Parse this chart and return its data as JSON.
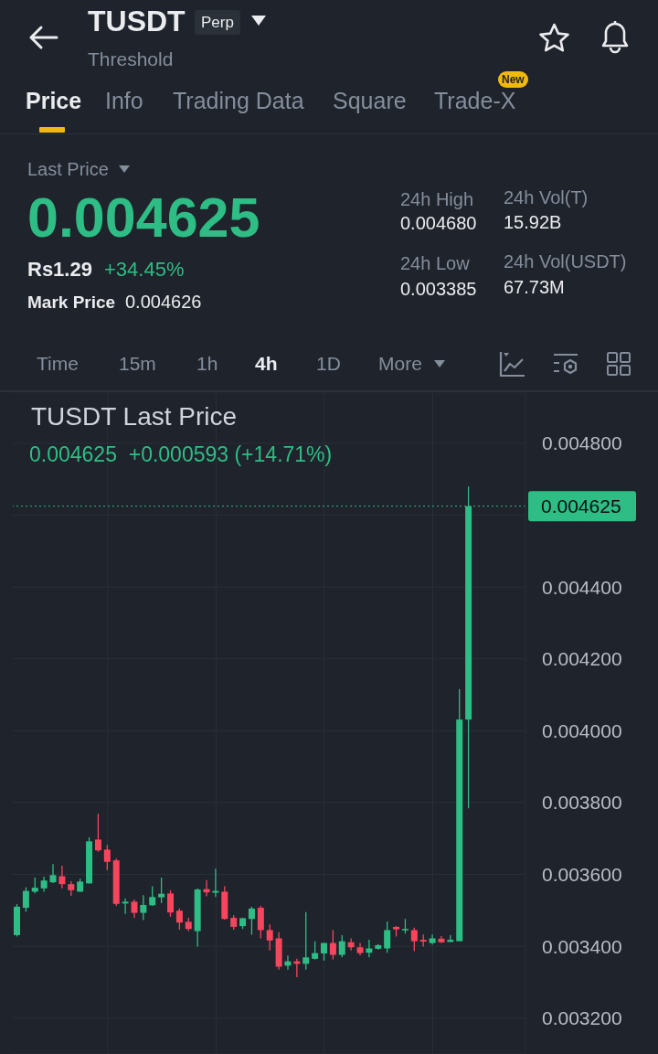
{
  "chart_data": {
    "type": "candlestick",
    "title": "TUSDT Last Price",
    "subtitle": "0.004625  +0.000593 (+14.71%)",
    "annotations": [
      "TUSDT",
      "Perp",
      "Threshold",
      "Price",
      "Info",
      "Trading Data",
      "Square",
      "Trade-X",
      "New",
      "Last Price",
      "0.004625",
      "24h High",
      "0.004680",
      "24h Vol(T)",
      "15.92B",
      "Rs1.29",
      "+34.45%",
      "24h Low",
      "0.003385",
      "24h Vol(USDT)",
      "67.73M",
      "Mark Price",
      "0.004626",
      "Time",
      "15m",
      "1h",
      "4h",
      "1D",
      "More"
    ],
    "categories": [
      null,
      null,
      null,
      null,
      null,
      null,
      null,
      null,
      null,
      null,
      null,
      null,
      null,
      null,
      null,
      null,
      null,
      null,
      null,
      null,
      null,
      null,
      null,
      null,
      null,
      null,
      null,
      null,
      null,
      null,
      null,
      null,
      null,
      null,
      null,
      null,
      null,
      null,
      null,
      null,
      null,
      null,
      null,
      null,
      null,
      null,
      null,
      null,
      null,
      null,
      null
    ],
    "ohlc": [
      [
        0.003431,
        0.003517,
        0.003427,
        0.00351
      ],
      [
        0.003507,
        0.003564,
        0.003496,
        0.003554
      ],
      [
        0.003552,
        0.003591,
        0.003547,
        0.003563
      ],
      [
        0.003561,
        0.003594,
        0.003552,
        0.003583
      ],
      [
        0.003578,
        0.003629,
        0.003576,
        0.003598
      ],
      [
        0.003595,
        0.003624,
        0.003561,
        0.003573
      ],
      [
        0.003573,
        0.003581,
        0.00354,
        0.003556
      ],
      [
        0.003552,
        0.003588,
        0.003551,
        0.00358
      ],
      [
        0.003575,
        0.003703,
        0.003574,
        0.003692
      ],
      [
        0.003697,
        0.003769,
        0.003663,
        0.003667
      ],
      [
        0.003669,
        0.003682,
        0.003612,
        0.003635
      ],
      [
        0.003639,
        0.003644,
        0.003512,
        0.003518
      ],
      [
        0.003519,
        0.003533,
        0.00349,
        0.003524
      ],
      [
        0.003524,
        0.00353,
        0.003479,
        0.003493
      ],
      [
        0.003493,
        0.003542,
        0.003473,
        0.003515
      ],
      [
        0.003514,
        0.003567,
        0.003512,
        0.003537
      ],
      [
        0.003536,
        0.003591,
        0.00352,
        0.003546
      ],
      [
        0.003547,
        0.003556,
        0.003482,
        0.003494
      ],
      [
        0.003499,
        0.003505,
        0.003446,
        0.003466
      ],
      [
        0.003468,
        0.003479,
        0.003442,
        0.003448
      ],
      [
        0.003442,
        0.003561,
        0.003399,
        0.003558
      ],
      [
        0.003559,
        0.003584,
        0.003539,
        0.00355
      ],
      [
        0.003549,
        0.003616,
        0.003537,
        0.003554
      ],
      [
        0.003552,
        0.003567,
        0.003474,
        0.003476
      ],
      [
        0.003479,
        0.003486,
        0.003446,
        0.003454
      ],
      [
        0.003456,
        0.003479,
        0.003448,
        0.003478
      ],
      [
        0.003476,
        0.00351,
        0.003432,
        0.003505
      ],
      [
        0.003507,
        0.003512,
        0.003422,
        0.003445
      ],
      [
        0.003445,
        0.003461,
        0.003388,
        0.003416
      ],
      [
        0.003422,
        0.003439,
        0.003335,
        0.003343
      ],
      [
        0.003346,
        0.003374,
        0.003335,
        0.003358
      ],
      [
        0.003358,
        0.003365,
        0.003314,
        0.003351
      ],
      [
        0.003351,
        0.003495,
        0.003335,
        0.003369
      ],
      [
        0.003365,
        0.003414,
        0.003363,
        0.003381
      ],
      [
        0.00338,
        0.003409,
        0.00336,
        0.003409
      ],
      [
        0.003409,
        0.003445,
        0.003363,
        0.003376
      ],
      [
        0.003376,
        0.003431,
        0.003369,
        0.003414
      ],
      [
        0.003411,
        0.003422,
        0.003388,
        0.003397
      ],
      [
        0.003397,
        0.003409,
        0.003375,
        0.003381
      ],
      [
        0.003382,
        0.003418,
        0.003369,
        0.003394
      ],
      [
        0.003393,
        0.003406,
        0.003391,
        0.003403
      ],
      [
        0.003394,
        0.003469,
        0.003382,
        0.003445
      ],
      [
        0.003454,
        0.003456,
        0.003427,
        0.003447
      ],
      [
        0.003444,
        0.003476,
        0.003435,
        0.003448
      ],
      [
        0.003445,
        0.003452,
        0.003386,
        0.003414
      ],
      [
        0.003418,
        0.003433,
        0.003399,
        0.003413
      ],
      [
        0.003409,
        0.003433,
        0.003405,
        0.003422
      ],
      [
        0.003421,
        0.003428,
        0.003409,
        0.003411
      ],
      [
        0.003412,
        0.003431,
        0.003412,
        0.003418
      ],
      [
        0.003414,
        0.004116,
        0.003414,
        0.004031
      ],
      [
        0.004031,
        0.00468,
        0.003784,
        0.004625
      ]
    ],
    "colors": [
      "#2ebd85",
      "#2ebd85",
      "#2ebd85",
      "#2ebd85",
      "#2ebd85",
      "#f6465d",
      "#f6465d",
      "#2ebd85",
      "#2ebd85",
      "#f6465d",
      "#f6465d",
      "#f6465d",
      "#2ebd85",
      "#f6465d",
      "#2ebd85",
      "#2ebd85",
      "#2ebd85",
      "#f6465d",
      "#f6465d",
      "#f6465d",
      "#2ebd85",
      "#f6465d",
      "#2ebd85",
      "#f6465d",
      "#f6465d",
      "#2ebd85",
      "#2ebd85",
      "#f6465d",
      "#f6465d",
      "#f6465d",
      "#2ebd85",
      "#f6465d",
      "#2ebd85",
      "#2ebd85",
      "#2ebd85",
      "#f6465d",
      "#2ebd85",
      "#f6465d",
      "#f6465d",
      "#2ebd85",
      "#2ebd85",
      "#2ebd85",
      "#f6465d",
      "#2ebd85",
      "#f6465d",
      "#f6465d",
      "#2ebd85",
      "#f6465d",
      "#2ebd85",
      "#2ebd85",
      "#2ebd85"
    ],
    "ylim": [
      0.0031,
      0.00494
    ],
    "yticks": [
      {
        "value": 0.0032,
        "label": "0.003200"
      },
      {
        "value": 0.0034,
        "label": "0.003400"
      },
      {
        "value": 0.0036,
        "label": "0.003600"
      },
      {
        "value": 0.0038,
        "label": "0.003800"
      },
      {
        "value": 0.004,
        "label": "0.004000"
      },
      {
        "value": 0.0042,
        "label": "0.004200"
      },
      {
        "value": 0.0044,
        "label": "0.004400"
      },
      {
        "value": 0.0046,
        "label": null
      },
      {
        "value": 0.0048,
        "label": "0.004800"
      }
    ],
    "ref_lines": [
      {
        "axis": "y",
        "value": 0.004625,
        "label": "0.004625",
        "color": "#2ebd85",
        "line_style": "dotted"
      }
    ],
    "grid": true,
    "tick_labels": "y"
  }
}
